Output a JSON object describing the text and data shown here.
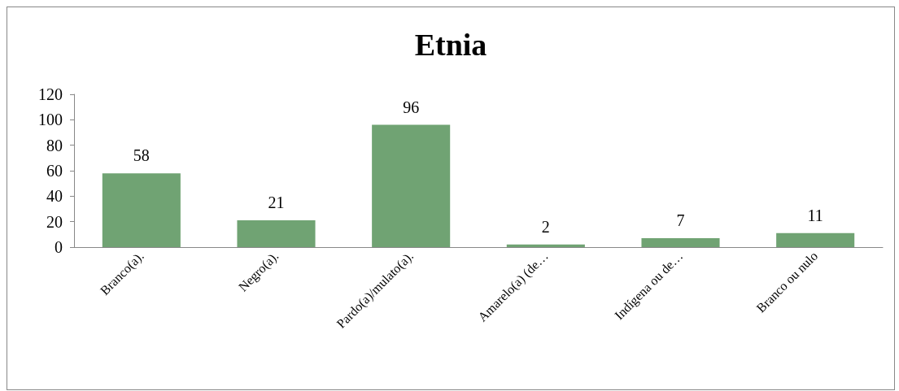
{
  "chart_data": {
    "type": "bar",
    "title": "Etnia",
    "categories": [
      "Branco(a).",
      "Negro(a).",
      "Pardo(a)/mulato(a).",
      "Amarelo(a) (de…",
      "Indígena ou de…",
      "Branco ou nulo"
    ],
    "values": [
      58,
      21,
      96,
      2,
      7,
      11
    ],
    "color": "#70a373",
    "ylim": [
      0,
      120
    ],
    "yticks": [
      0,
      20,
      40,
      60,
      80,
      100,
      120
    ],
    "data_labels": true
  }
}
